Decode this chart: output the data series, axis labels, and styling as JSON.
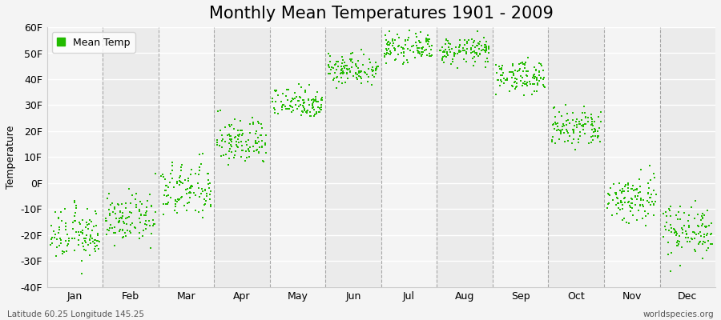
{
  "title": "Monthly Mean Temperatures 1901 - 2009",
  "ylabel": "Temperature",
  "xlabel": "",
  "ylim": [
    -40,
    60
  ],
  "yticks": [
    -40,
    -30,
    -20,
    -10,
    0,
    10,
    20,
    30,
    40,
    50,
    60
  ],
  "ytick_labels": [
    "-40F",
    "-30F",
    "-20F",
    "-10F",
    "0F",
    "10F",
    "20F",
    "30F",
    "40F",
    "50F",
    "60F"
  ],
  "months": [
    "Jan",
    "Feb",
    "Mar",
    "Apr",
    "May",
    "Jun",
    "Jul",
    "Aug",
    "Sep",
    "Oct",
    "Nov",
    "Dec"
  ],
  "month_means_f": [
    -20,
    -14,
    -3,
    16,
    31,
    44,
    52,
    51,
    41,
    21,
    -6,
    -18
  ],
  "month_stds_f": [
    5.0,
    4.5,
    5.5,
    4.5,
    3.0,
    3.0,
    2.5,
    2.5,
    3.0,
    4.0,
    5.0,
    5.0
  ],
  "n_years": 109,
  "dot_color": "#22bb00",
  "dot_size": 3,
  "background_color": "#f4f4f4",
  "band_color_odd": "#ebebeb",
  "band_color_even": "#f4f4f4",
  "grid_color": "#888888",
  "title_fontsize": 15,
  "axis_fontsize": 9,
  "tick_fontsize": 9,
  "legend_label": "Mean Temp",
  "bottom_left_text": "Latitude 60.25 Longitude 145.25",
  "bottom_right_text": "worldspecies.org"
}
